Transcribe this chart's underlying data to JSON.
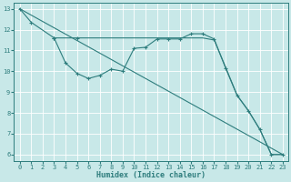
{
  "xlabel": "Humidex (Indice chaleur)",
  "xlim": [
    -0.5,
    23.5
  ],
  "ylim": [
    5.7,
    13.3
  ],
  "yticks": [
    6,
    7,
    8,
    9,
    10,
    11,
    12,
    13
  ],
  "xticks": [
    0,
    1,
    2,
    3,
    4,
    5,
    6,
    7,
    8,
    9,
    10,
    11,
    12,
    13,
    14,
    15,
    16,
    17,
    18,
    19,
    20,
    21,
    22,
    23
  ],
  "bg_color": "#c8e8e8",
  "grid_color": "#b0d8d8",
  "line_color": "#2e7d7d",
  "line_straight": {
    "x": [
      0,
      23
    ],
    "y": [
      13,
      6
    ]
  },
  "line_upper": {
    "x": [
      0,
      1,
      3,
      5,
      6,
      7,
      8,
      9,
      10,
      11,
      12,
      13,
      14,
      15,
      16,
      17,
      18,
      19,
      20,
      21,
      22,
      23
    ],
    "y": [
      13,
      12.35,
      11.6,
      11.6,
      11.6,
      11.6,
      11.6,
      11.6,
      11.6,
      11.6,
      11.6,
      11.6,
      11.6,
      11.6,
      11.6,
      11.5,
      10.2,
      8.85,
      8.1,
      7.2,
      6.0,
      6.0
    ],
    "markers": [
      0,
      1,
      3,
      5
    ]
  },
  "line_wiggly": {
    "x": [
      3,
      4,
      5,
      6,
      7,
      8,
      9,
      10,
      11,
      12,
      13,
      14,
      15,
      16,
      17,
      18,
      19,
      20,
      21,
      22,
      23
    ],
    "y": [
      11.6,
      10.4,
      9.9,
      9.65,
      9.8,
      10.1,
      10.0,
      11.1,
      11.15,
      11.55,
      11.55,
      11.55,
      11.8,
      11.8,
      11.55,
      10.15,
      8.85,
      8.1,
      7.2,
      6.0,
      6.0
    ]
  }
}
